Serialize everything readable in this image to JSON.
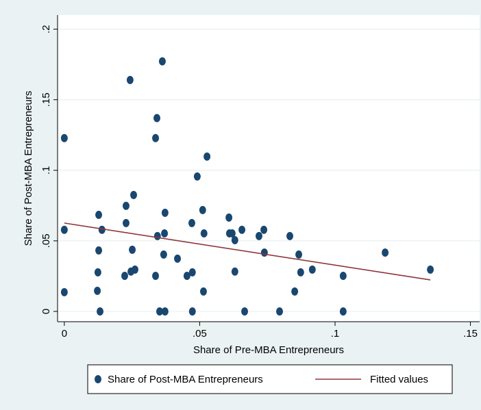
{
  "chart_data": {
    "type": "scatter",
    "xlabel": "Share of Pre-MBA Entrepreneurs",
    "ylabel": "Share of Post-MBA Entrepreneurs",
    "xlim": [
      -0.0025,
      0.1534
    ],
    "ylim": [
      -0.0073,
      0.21
    ],
    "xticks": [
      0,
      {
        "value": 0.05,
        "label": ".05"
      },
      {
        "value": 0.1,
        "label": ".1"
      },
      {
        "value": 0.15,
        "label": ".15"
      }
    ],
    "yticks": [
      0,
      {
        "value": 0.05,
        "label": ".05"
      },
      {
        "value": 0.1,
        "label": ".1"
      },
      {
        "value": 0.15,
        "label": ".15"
      },
      {
        "value": 0.2,
        "label": ".2"
      }
    ],
    "grid": true,
    "legend": "bottom",
    "series": [
      {
        "name": "Share of Post-MBA Entrepreneurs",
        "color": "#1a476f",
        "x": [
          0,
          0,
          0,
          0.0127,
          0.0127,
          0.0124,
          0.0122,
          0.0132,
          0.0139,
          0.0228,
          0.0228,
          0.0243,
          0.0256,
          0.0223,
          0.0246,
          0.0251,
          0.0261,
          0.0342,
          0.0337,
          0.0362,
          0.0344,
          0.0337,
          0.0352,
          0.0372,
          0.0372,
          0.037,
          0.0367,
          0.0418,
          0.0453,
          0.0473,
          0.0471,
          0.0473,
          0.0491,
          0.0511,
          0.0514,
          0.0516,
          0.0527,
          0.0608,
          0.061,
          0.062,
          0.063,
          0.063,
          0.0656,
          0.0666,
          0.0719,
          0.0737,
          0.0739,
          0.0795,
          0.0833,
          0.0851,
          0.0866,
          0.0873,
          0.0916,
          0.103,
          0.103,
          0.1185,
          0.1352
        ],
        "values": [
          0.1228,
          0.0578,
          0.0136,
          0.0684,
          0.0432,
          0.0277,
          0.0146,
          0,
          0.0578,
          0.0748,
          0.0626,
          0.164,
          0.0825,
          0.0252,
          0.0282,
          0.0437,
          0.0296,
          0.137,
          0.1228,
          0.1772,
          0.0534,
          0.0252,
          0,
          0,
          0.0699,
          0.0553,
          0.0403,
          0.0374,
          0.0252,
          0.0277,
          0.0626,
          0,
          0.0956,
          0.0718,
          0.0141,
          0.0553,
          0.1097,
          0.0665,
          0.0553,
          0.0553,
          0.0505,
          0.0282,
          0.0578,
          0,
          0.0534,
          0.0578,
          0.0417,
          0,
          0.0534,
          0.0141,
          0.0403,
          0.0277,
          0.0296,
          0.0252,
          0,
          0.0417,
          0.0296
        ]
      },
      {
        "name": "Fitted values",
        "color": "#90353b",
        "type": "line",
        "x": [
          0,
          0.1352
        ],
        "values": [
          0.0626,
          0.0223
        ]
      }
    ]
  }
}
